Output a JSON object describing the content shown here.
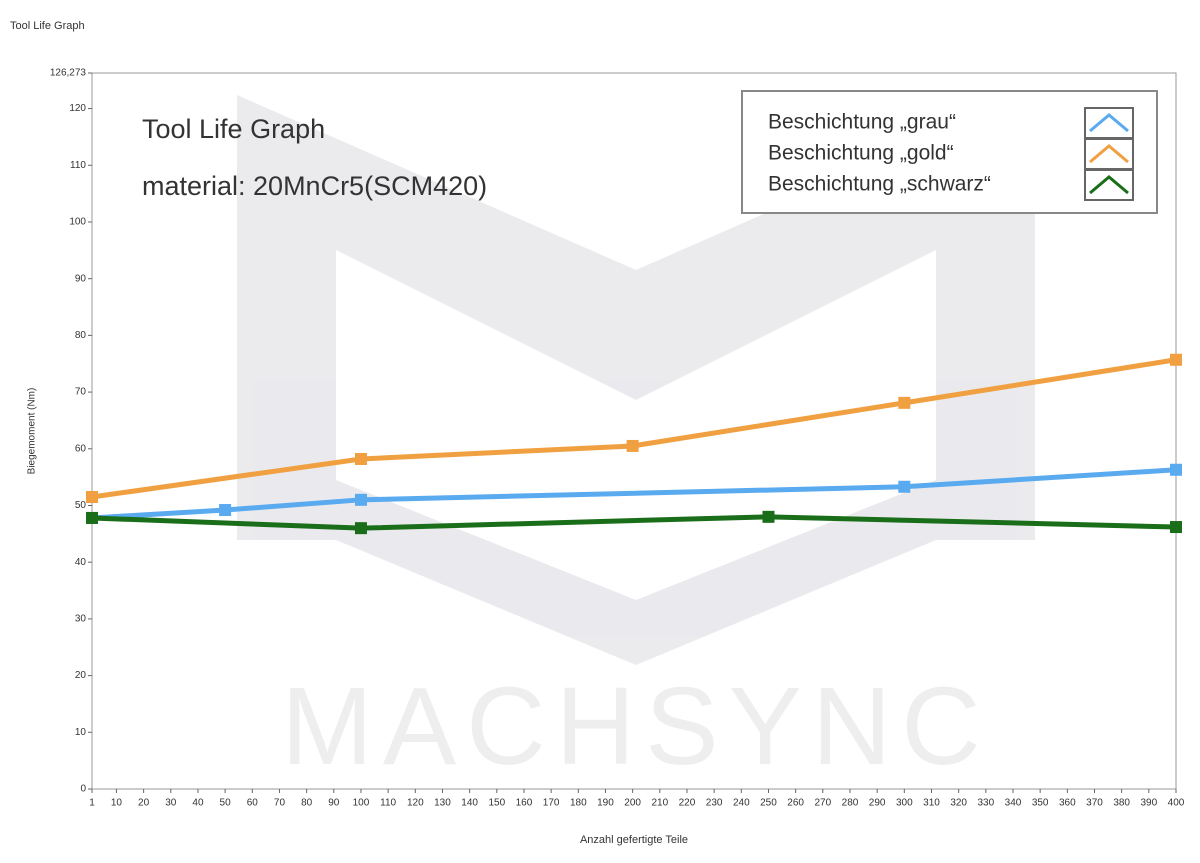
{
  "chart_data": {
    "type": "line",
    "title": "Tool Life Graph",
    "annotations": [
      "Tool Life Graph",
      "material: 20MnCr5(SCM420)"
    ],
    "watermark": "MACHSYNC",
    "x_label": "Anzahl gefertigte Teile",
    "y_label": "Biegemoment (Nm)",
    "xlim": [
      1,
      400
    ],
    "xticks": [
      1,
      10,
      20,
      30,
      40,
      50,
      60,
      70,
      80,
      90,
      100,
      110,
      120,
      130,
      140,
      150,
      160,
      170,
      180,
      190,
      200,
      210,
      220,
      230,
      240,
      250,
      260,
      270,
      280,
      290,
      300,
      310,
      320,
      330,
      340,
      350,
      360,
      370,
      380,
      390,
      400
    ],
    "ylim": [
      0,
      126.273
    ],
    "yticks": [
      0,
      10,
      20,
      30,
      40,
      50,
      60,
      70,
      80,
      90,
      100,
      110,
      120,
      {
        "value": 126.273,
        "label": "126,273"
      }
    ],
    "legend": "top-right",
    "series": [
      {
        "name": "Beschichtung „grau“",
        "color": "#5aaaf0",
        "x": [
          1,
          50,
          100,
          300,
          400
        ],
        "values": [
          47.8,
          49.2,
          51,
          53.3,
          56.3
        ]
      },
      {
        "name": "Beschichtung „gold“",
        "color": "#f0a040",
        "x": [
          1,
          100,
          200,
          300,
          400
        ],
        "values": [
          51.5,
          58.2,
          60.5,
          68.1,
          75.7
        ]
      },
      {
        "name": "Beschichtung „schwarz“",
        "color": "#1a6e1a",
        "x": [
          1,
          100,
          250,
          400
        ],
        "values": [
          47.8,
          46,
          48,
          46.2
        ]
      }
    ]
  }
}
